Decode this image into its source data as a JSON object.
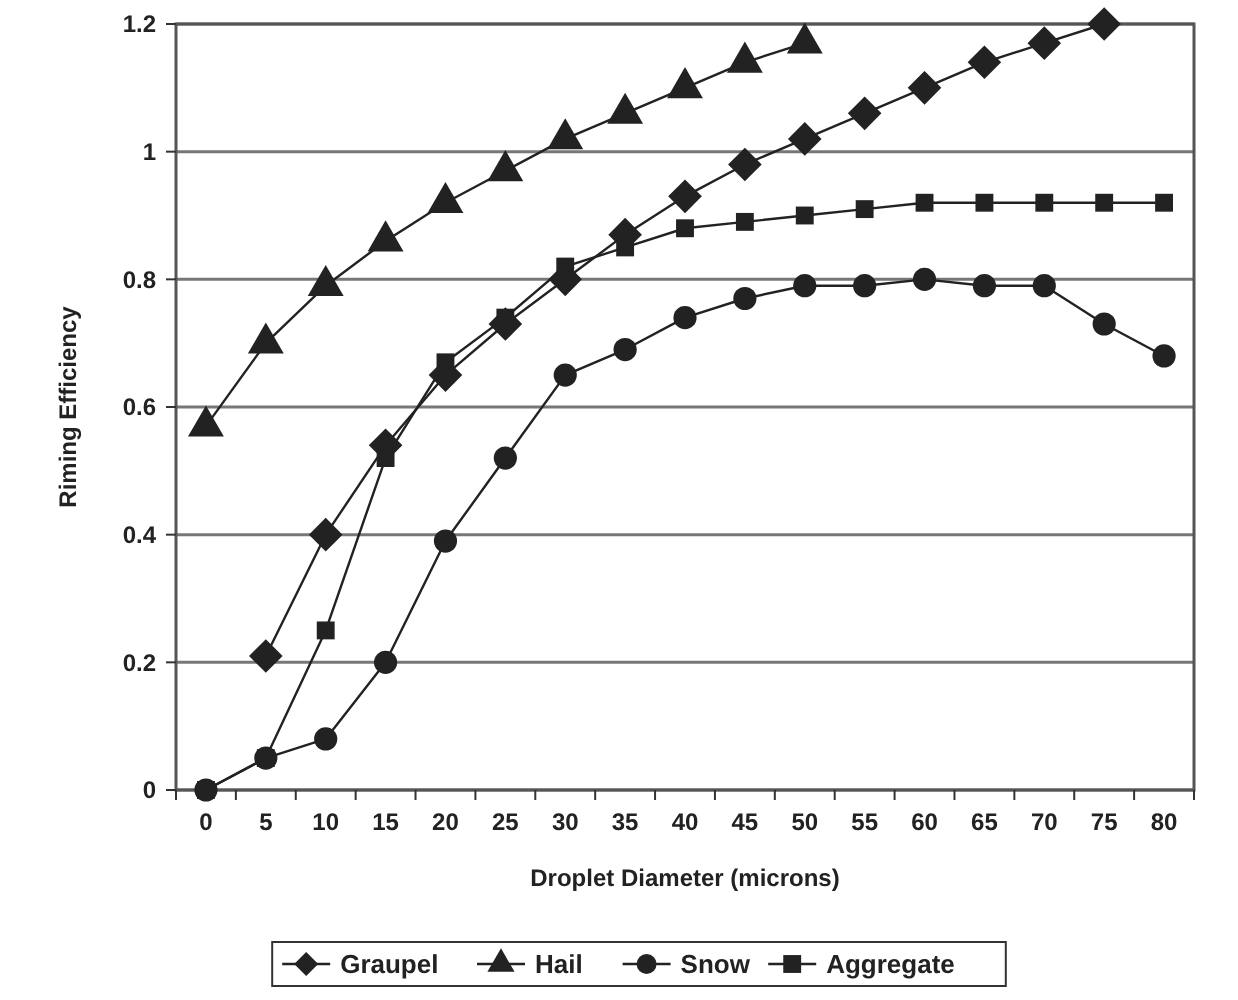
{
  "chart_data": {
    "type": "line",
    "xlabel": "Droplet Diameter (microns)",
    "ylabel": "Riming Efficiency",
    "categories": [
      "0",
      "5",
      "10",
      "15",
      "20",
      "25",
      "30",
      "35",
      "40",
      "45",
      "50",
      "55",
      "60",
      "65",
      "70",
      "75",
      "80"
    ],
    "ylim": [
      0,
      1.2
    ],
    "yticks": [
      0,
      0.2,
      0.4,
      0.6,
      0.8,
      1,
      1.2
    ],
    "grid": "y",
    "legend": "bottom",
    "series": [
      {
        "name": "Graupel",
        "color": "#222222",
        "marker": "diamond",
        "values": [
          null,
          0.21,
          0.4,
          0.54,
          0.65,
          0.73,
          0.8,
          0.87,
          0.93,
          0.98,
          1.02,
          1.06,
          1.1,
          1.14,
          1.17,
          1.2,
          null
        ]
      },
      {
        "name": "Hail",
        "color": "#222222",
        "marker": "triangle",
        "values": [
          0.57,
          0.7,
          0.79,
          0.86,
          0.92,
          0.97,
          1.02,
          1.06,
          1.1,
          1.14,
          1.17,
          null,
          null,
          null,
          null,
          null,
          null
        ]
      },
      {
        "name": "Snow",
        "color": "#222222",
        "marker": "circle",
        "values": [
          0,
          0.05,
          0.08,
          0.2,
          0.39,
          0.52,
          0.65,
          0.69,
          0.74,
          0.77,
          0.79,
          0.79,
          0.8,
          0.79,
          0.79,
          0.73,
          0.68
        ]
      },
      {
        "name": "Aggregate",
        "color": "#222222",
        "marker": "square",
        "values": [
          0,
          0.05,
          0.25,
          0.52,
          0.67,
          0.74,
          0.82,
          0.85,
          0.88,
          0.89,
          0.9,
          0.91,
          0.92,
          0.92,
          0.92,
          0.92,
          0.92
        ]
      }
    ]
  }
}
